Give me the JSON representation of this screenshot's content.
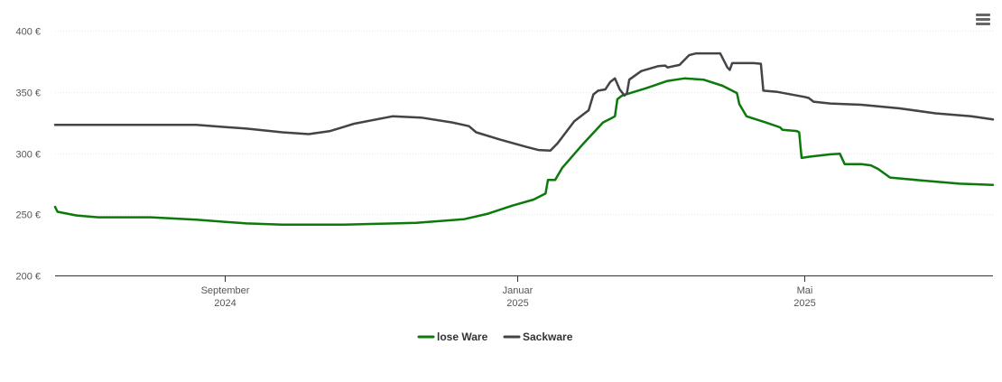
{
  "menu": {
    "icon": "hamburger-menu-icon"
  },
  "chart_data": {
    "type": "line",
    "title": "",
    "xlabel": "",
    "ylabel": "",
    "x_range": [
      "2024-06-22",
      "2025-07-19"
    ],
    "ylim": [
      200,
      400
    ],
    "y_ticks": [
      {
        "value": 200,
        "label": "200 €"
      },
      {
        "value": 250,
        "label": "250 €"
      },
      {
        "value": 300,
        "label": "300 €"
      },
      {
        "value": 350,
        "label": "350 €"
      },
      {
        "value": 400,
        "label": "400 €"
      }
    ],
    "x_ticks": [
      {
        "date": "2024-09-01",
        "month": "September",
        "year": "2024"
      },
      {
        "date": "2025-01-01",
        "month": "Januar",
        "year": "2025"
      },
      {
        "date": "2025-05-01",
        "month": "Mai",
        "year": "2025"
      }
    ],
    "grid": true,
    "legend_position": "bottom-center",
    "series": [
      {
        "name": "lose Ware",
        "color": "#0b7a0b",
        "points": [
          [
            "2024-06-22",
            256
          ],
          [
            "2024-06-23",
            252
          ],
          [
            "2024-07-01",
            249
          ],
          [
            "2024-07-10",
            247.5
          ],
          [
            "2024-08-01",
            247.5
          ],
          [
            "2024-08-20",
            245.5
          ],
          [
            "2024-09-10",
            242.5
          ],
          [
            "2024-09-25",
            241.5
          ],
          [
            "2024-10-20",
            241.5
          ],
          [
            "2024-11-20",
            243
          ],
          [
            "2024-12-10",
            246
          ],
          [
            "2024-12-20",
            250.5
          ],
          [
            "2024-12-30",
            257
          ],
          [
            "2025-01-08",
            262
          ],
          [
            "2025-01-13",
            267
          ],
          [
            "2025-01-14",
            278
          ],
          [
            "2025-01-17",
            278
          ],
          [
            "2025-01-20",
            288
          ],
          [
            "2025-01-28",
            306
          ],
          [
            "2025-02-06",
            325
          ],
          [
            "2025-02-10",
            329
          ],
          [
            "2025-02-11",
            330
          ],
          [
            "2025-02-12",
            344
          ],
          [
            "2025-02-14",
            347
          ],
          [
            "2025-02-24",
            353
          ],
          [
            "2025-03-05",
            359
          ],
          [
            "2025-03-12",
            361
          ],
          [
            "2025-03-20",
            360
          ],
          [
            "2025-03-28",
            355
          ],
          [
            "2025-04-03",
            349
          ],
          [
            "2025-04-04",
            340
          ],
          [
            "2025-04-07",
            330
          ],
          [
            "2025-04-15",
            325
          ],
          [
            "2025-04-21",
            321
          ],
          [
            "2025-04-22",
            319
          ],
          [
            "2025-04-28",
            318
          ],
          [
            "2025-04-29",
            317
          ],
          [
            "2025-04-30",
            296
          ],
          [
            "2025-05-03",
            297
          ],
          [
            "2025-05-12",
            299
          ],
          [
            "2025-05-16",
            299.5
          ],
          [
            "2025-05-18",
            291
          ],
          [
            "2025-05-25",
            291
          ],
          [
            "2025-05-29",
            290
          ],
          [
            "2025-06-01",
            287
          ],
          [
            "2025-06-06",
            280
          ],
          [
            "2025-06-20",
            277.5
          ],
          [
            "2025-07-05",
            275
          ],
          [
            "2025-07-19",
            274
          ]
        ]
      },
      {
        "name": "Sackware",
        "color": "#434348",
        "points": [
          [
            "2024-06-22",
            323
          ],
          [
            "2024-08-20",
            323
          ],
          [
            "2024-09-10",
            320
          ],
          [
            "2024-09-25",
            317
          ],
          [
            "2024-10-06",
            315.5
          ],
          [
            "2024-10-15",
            318
          ],
          [
            "2024-10-25",
            324
          ],
          [
            "2024-11-10",
            330
          ],
          [
            "2024-11-22",
            329
          ],
          [
            "2024-12-05",
            325
          ],
          [
            "2024-12-12",
            322
          ],
          [
            "2024-12-15",
            317
          ],
          [
            "2024-12-25",
            311
          ],
          [
            "2025-01-05",
            305
          ],
          [
            "2025-01-10",
            302.5
          ],
          [
            "2025-01-15",
            302
          ],
          [
            "2025-01-18",
            308
          ],
          [
            "2025-01-25",
            326
          ],
          [
            "2025-01-29",
            332
          ],
          [
            "2025-01-31",
            335
          ],
          [
            "2025-02-02",
            348
          ],
          [
            "2025-02-04",
            351
          ],
          [
            "2025-02-07",
            352
          ],
          [
            "2025-02-09",
            358
          ],
          [
            "2025-02-11",
            361
          ],
          [
            "2025-02-13",
            352
          ],
          [
            "2025-02-15",
            347
          ],
          [
            "2025-02-16",
            349
          ],
          [
            "2025-02-17",
            360
          ],
          [
            "2025-02-22",
            367
          ],
          [
            "2025-03-01",
            371
          ],
          [
            "2025-03-04",
            371.5
          ],
          [
            "2025-03-05",
            370
          ],
          [
            "2025-03-10",
            372
          ],
          [
            "2025-03-14",
            380
          ],
          [
            "2025-03-17",
            381.5
          ],
          [
            "2025-03-27",
            381.5
          ],
          [
            "2025-03-30",
            370
          ],
          [
            "2025-03-31",
            368
          ],
          [
            "2025-04-01",
            373.5
          ],
          [
            "2025-04-10",
            373.5
          ],
          [
            "2025-04-13",
            373
          ],
          [
            "2025-04-14",
            351
          ],
          [
            "2025-04-20",
            350
          ],
          [
            "2025-05-01",
            346
          ],
          [
            "2025-05-03",
            345
          ],
          [
            "2025-05-05",
            342
          ],
          [
            "2025-05-12",
            340.5
          ],
          [
            "2025-05-25",
            339.5
          ],
          [
            "2025-06-10",
            336.5
          ],
          [
            "2025-06-25",
            332.5
          ],
          [
            "2025-07-10",
            330
          ],
          [
            "2025-07-19",
            327.5
          ]
        ]
      }
    ]
  }
}
